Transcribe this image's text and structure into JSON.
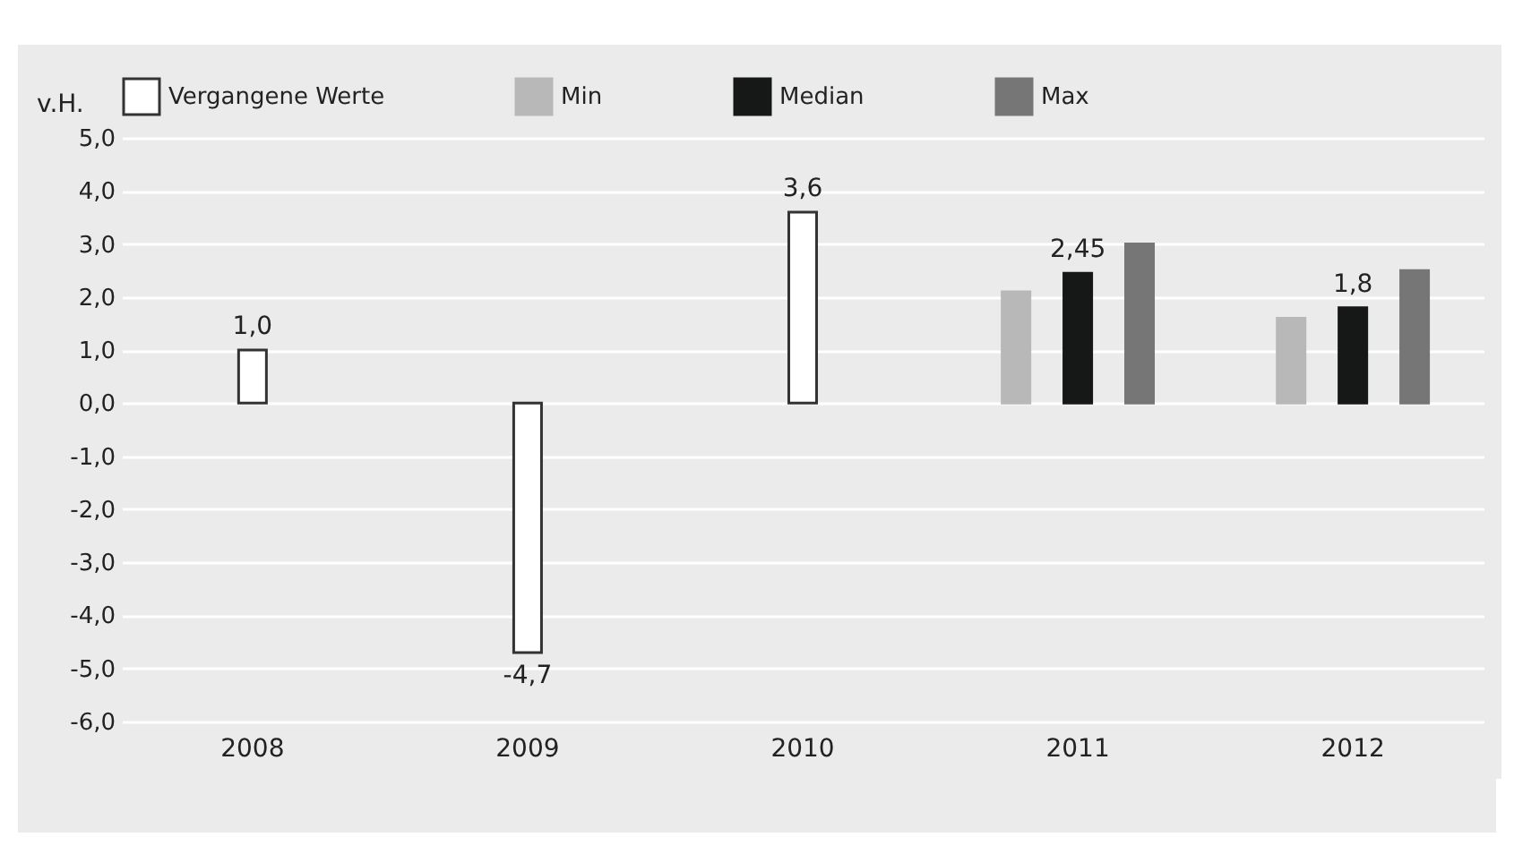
{
  "chart_data": {
    "type": "bar",
    "ylabel": "v.H.",
    "categories": [
      "2008",
      "2009",
      "2010",
      "2011",
      "2012"
    ],
    "series": [
      {
        "name": "Vergangene Werte",
        "color": "#ffffff",
        "values": [
          1.0,
          -4.7,
          3.6,
          null,
          null
        ],
        "value_labels": [
          "1,0",
          "-4,7",
          "3,6",
          null,
          null
        ]
      },
      {
        "name": "Min",
        "color": "#b8b8b8",
        "values": [
          null,
          null,
          null,
          2.1,
          1.6
        ]
      },
      {
        "name": "Median",
        "color": "#161817",
        "values": [
          null,
          null,
          null,
          2.45,
          1.8
        ],
        "value_labels": [
          null,
          null,
          null,
          "2,45",
          "1,8"
        ]
      },
      {
        "name": "Max",
        "color": "#767676",
        "values": [
          null,
          null,
          null,
          3.0,
          2.5
        ]
      }
    ],
    "ylim": [
      -6,
      5
    ],
    "yticks": [
      {
        "value": 5,
        "label": "5,0"
      },
      {
        "value": 4,
        "label": "4,0"
      },
      {
        "value": 3,
        "label": "3,0"
      },
      {
        "value": 2,
        "label": "2,0"
      },
      {
        "value": 1,
        "label": "1,0"
      },
      {
        "value": 0,
        "label": "0,0"
      },
      {
        "value": -1,
        "label": "-1,0"
      },
      {
        "value": -2,
        "label": "-2,0"
      },
      {
        "value": -3,
        "label": "-3,0"
      },
      {
        "value": -4,
        "label": "-4,0"
      },
      {
        "value": -5,
        "label": "-5,0"
      },
      {
        "value": -6,
        "label": "-6,0"
      }
    ],
    "grid": "y",
    "legend": "top"
  }
}
